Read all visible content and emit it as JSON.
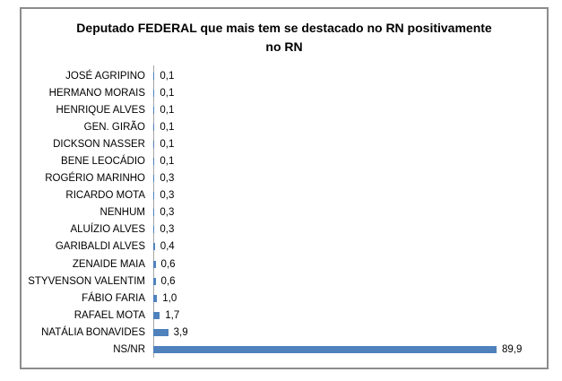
{
  "chart_data": {
    "type": "bar",
    "orientation": "horizontal",
    "title": "Deputado FEDERAL que mais tem se destacado no RN positivamente no RN",
    "title_lines": [
      "Deputado FEDERAL que mais tem se destacado no RN positivamente",
      "no RN"
    ],
    "categories": [
      "JOSÉ AGRIPINO",
      "HERMANO MORAIS",
      "HENRIQUE ALVES",
      "GEN. GIRÃO",
      "DICKSON NASSER",
      "BENE LEOCÁDIO",
      "ROGÉRIO MARINHO",
      "RICARDO MOTA",
      "NENHUM",
      "ALUÍZIO ALVES",
      "GARIBALDI ALVES",
      "ZENAIDE MAIA",
      "STYVENSON VALENTIM",
      "FÁBIO FARIA",
      "RAFAEL MOTA",
      "NATÁLIA BONAVIDES",
      "NS/NR"
    ],
    "values": [
      0.1,
      0.1,
      0.1,
      0.1,
      0.1,
      0.1,
      0.3,
      0.3,
      0.3,
      0.3,
      0.4,
      0.6,
      0.6,
      1.0,
      1.7,
      3.9,
      89.9
    ],
    "value_labels": [
      "0,1",
      "0,1",
      "0,1",
      "0,1",
      "0,1",
      "0,1",
      "0,3",
      "0,3",
      "0,3",
      "0,3",
      "0,4",
      "0,6",
      "0,6",
      "1,0",
      "1,7",
      "3,9",
      "89,9"
    ],
    "xlabel": "",
    "ylabel": "",
    "xlim": [
      0,
      95
    ],
    "grid": false,
    "legend": false,
    "bar_color": "#4F81BD",
    "frame_border_color": "#8c8c8c",
    "axis_line_color": "#a6a6a6"
  }
}
